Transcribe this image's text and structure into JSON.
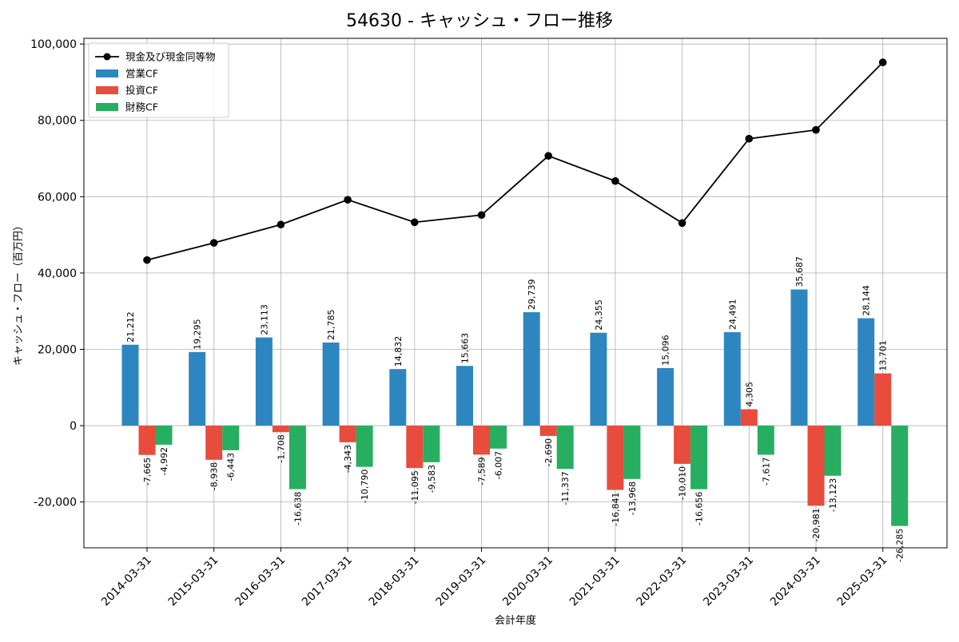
{
  "chart_data": {
    "type": "bar",
    "title": "54630 - キャッシュ・フロー推移",
    "xlabel": "会計年度",
    "ylabel": "キャッシュ・フロー（百万円）",
    "ylim": [
      -32000,
      101500
    ],
    "yticks": [
      -20000,
      0,
      20000,
      40000,
      60000,
      80000,
      100000
    ],
    "ytick_labels": [
      "-20,000",
      "0",
      "20,000",
      "40,000",
      "60,000",
      "80,000",
      "100,000"
    ],
    "grid": true,
    "legend_position": "top-left",
    "categories": [
      "2014-03-31",
      "2015-03-31",
      "2016-03-31",
      "2017-03-31",
      "2018-03-31",
      "2019-03-31",
      "2020-03-31",
      "2021-03-31",
      "2022-03-31",
      "2023-03-31",
      "2024-03-31",
      "2025-03-31"
    ],
    "series": [
      {
        "name": "営業CF",
        "kind": "bar",
        "color": "#2e86c1",
        "values": [
          21212,
          19295,
          23113,
          21785,
          14832,
          15663,
          29739,
          24355,
          15096,
          24491,
          35687,
          28144
        ],
        "labels": [
          "21,212",
          "19,295",
          "23,113",
          "21,785",
          "14,832",
          "15,663",
          "29,739",
          "24,355",
          "15,096",
          "24,491",
          "35,687",
          "28,144"
        ]
      },
      {
        "name": "投資CF",
        "kind": "bar",
        "color": "#e74c3c",
        "values": [
          -7665,
          -8938,
          -1708,
          -4343,
          -11095,
          -7589,
          -2690,
          -16841,
          -10010,
          4305,
          -20981,
          13701
        ],
        "labels": [
          "-7,665",
          "-8,938",
          "-1,708",
          "-4,343",
          "-11,095",
          "-7,589",
          "-2,690",
          "-16,841",
          "-10,010",
          "4,305",
          "-20,981",
          "13,701"
        ]
      },
      {
        "name": "財務CF",
        "kind": "bar",
        "color": "#27ae60",
        "values": [
          -4992,
          -6443,
          -16638,
          -10790,
          -9583,
          -6007,
          -11337,
          -13968,
          -16656,
          -7617,
          -13123,
          -26285
        ],
        "labels": [
          "-4,992",
          "-6,443",
          "-16,638",
          "-10,790",
          "-9,583",
          "-6,007",
          "-11,337",
          "-13,968",
          "-16,656",
          "-7,617",
          "-13,123",
          "-26,285"
        ]
      },
      {
        "name": "現金及び現金同等物",
        "kind": "line",
        "color": "#000000",
        "values": [
          43400,
          47900,
          52700,
          59200,
          53300,
          55200,
          70700,
          64100,
          53100,
          75200,
          77500,
          95200
        ]
      }
    ]
  }
}
